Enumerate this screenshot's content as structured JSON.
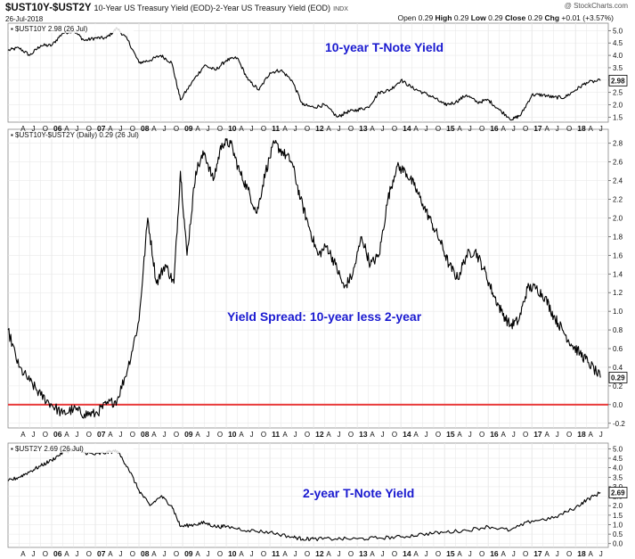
{
  "header": {
    "symbol": "$UST10Y-$UST2Y",
    "description": "10-Year US Treasury Yield (EOD)-2-Year US Treasury Yield (EOD)",
    "exchange": "INDX",
    "date": "26-Jul-2018",
    "watermark": "@ StockCharts.com",
    "quote_open_label": "Open",
    "quote_open": "0.29",
    "quote_high_label": "High",
    "quote_high": "0.29",
    "quote_low_label": "Low",
    "quote_low": "0.29",
    "quote_close_label": "Close",
    "quote_close": "0.29",
    "quote_chg_label": "Chg",
    "quote_chg": "+0.01 (+3.57%)"
  },
  "colors": {
    "line": "#000000",
    "zero_line": "#e83a3a",
    "title": "#1a1ad0",
    "grid": "#e6e6e6"
  },
  "chart_data": [
    {
      "type": "line",
      "label": "$UST10Y 2.98 (26 Jul)",
      "title": "10-year T-Note Yield",
      "last_value": "2.98",
      "ylim": [
        1.3,
        5.3
      ],
      "yticks": [
        "1.5",
        "2.0",
        "2.5",
        "3.0",
        "3.5",
        "4.0",
        "4.5",
        "5.0"
      ],
      "x": [
        2005.0,
        2005.25,
        2005.5,
        2005.75,
        2006.0,
        2006.25,
        2006.5,
        2006.75,
        2007.0,
        2007.25,
        2007.5,
        2007.75,
        2008.0,
        2008.25,
        2008.5,
        2008.75,
        2008.95,
        2009.25,
        2009.5,
        2009.75,
        2010.0,
        2010.25,
        2010.5,
        2010.75,
        2011.0,
        2011.25,
        2011.5,
        2011.75,
        2012.0,
        2012.25,
        2012.55,
        2012.75,
        2013.0,
        2013.25,
        2013.5,
        2013.75,
        2014.0,
        2014.25,
        2014.5,
        2014.75,
        2015.0,
        2015.25,
        2015.5,
        2015.75,
        2016.0,
        2016.25,
        2016.55,
        2016.75,
        2017.0,
        2017.25,
        2017.5,
        2017.75,
        2018.0,
        2018.25,
        2018.57
      ],
      "y": [
        4.2,
        4.3,
        4.0,
        4.4,
        4.4,
        4.9,
        5.0,
        4.6,
        4.7,
        4.7,
        5.1,
        4.6,
        3.7,
        3.8,
        4.0,
        3.7,
        2.2,
        3.0,
        3.6,
        3.4,
        3.8,
        3.9,
        3.0,
        2.6,
        3.3,
        3.4,
        3.0,
        2.0,
        1.9,
        2.0,
        1.5,
        1.7,
        1.8,
        1.9,
        2.5,
        2.6,
        3.0,
        2.7,
        2.5,
        2.3,
        2.0,
        2.1,
        2.4,
        2.1,
        2.2,
        1.8,
        1.4,
        1.6,
        2.4,
        2.4,
        2.3,
        2.3,
        2.6,
        2.9,
        2.98
      ]
    },
    {
      "type": "line",
      "label": "$UST10Y-$UST2Y (Daily) 0.29 (26 Jul)",
      "title": "Yield Spread: 10-year less 2-year",
      "last_value": "0.29",
      "ylim": [
        -0.25,
        2.95
      ],
      "yticks": [
        "-0.2",
        "0.0",
        "0.2",
        "0.4",
        "0.6",
        "0.8",
        "1.0",
        "1.2",
        "1.4",
        "1.6",
        "1.8",
        "2.0",
        "2.2",
        "2.4",
        "2.6",
        "2.8"
      ],
      "reference_line": 0.0,
      "x": [
        2005.0,
        2005.25,
        2005.5,
        2005.75,
        2006.0,
        2006.25,
        2006.5,
        2006.75,
        2007.0,
        2007.25,
        2007.5,
        2007.75,
        2008.0,
        2008.2,
        2008.4,
        2008.6,
        2008.8,
        2008.95,
        2009.1,
        2009.3,
        2009.5,
        2009.7,
        2009.9,
        2010.1,
        2010.3,
        2010.5,
        2010.7,
        2010.9,
        2011.1,
        2011.3,
        2011.5,
        2011.7,
        2011.9,
        2012.1,
        2012.3,
        2012.5,
        2012.7,
        2012.9,
        2013.1,
        2013.3,
        2013.5,
        2013.7,
        2013.9,
        2014.1,
        2014.3,
        2014.5,
        2014.7,
        2014.9,
        2015.1,
        2015.3,
        2015.5,
        2015.7,
        2015.9,
        2016.1,
        2016.3,
        2016.5,
        2016.7,
        2016.9,
        2017.1,
        2017.3,
        2017.5,
        2017.7,
        2017.9,
        2018.1,
        2018.3,
        2018.57
      ],
      "y": [
        0.8,
        0.4,
        0.25,
        0.1,
        0.0,
        -0.1,
        -0.05,
        -0.1,
        -0.1,
        0.0,
        0.05,
        0.4,
        0.9,
        2.0,
        1.3,
        1.5,
        1.3,
        2.5,
        1.6,
        2.5,
        2.7,
        2.4,
        2.8,
        2.8,
        2.5,
        2.3,
        2.05,
        2.5,
        2.8,
        2.7,
        2.6,
        2.2,
        1.9,
        1.6,
        1.7,
        1.5,
        1.25,
        1.4,
        1.8,
        1.5,
        1.6,
        2.2,
        2.55,
        2.5,
        2.35,
        2.15,
        1.95,
        1.75,
        1.5,
        1.35,
        1.6,
        1.65,
        1.45,
        1.2,
        1.0,
        0.85,
        0.9,
        1.25,
        1.25,
        1.15,
        0.95,
        0.8,
        0.65,
        0.55,
        0.45,
        0.29
      ]
    },
    {
      "type": "line",
      "label": "$UST2Y 2.69 (26 Jul)",
      "title": "2-year T-Note Yield",
      "last_value": "2.69",
      "ylim": [
        -0.2,
        5.3
      ],
      "yticks": [
        "0.0",
        "0.5",
        "1.0",
        "1.5",
        "2.0",
        "2.5",
        "3.0",
        "3.5",
        "4.0",
        "4.5",
        "5.0"
      ],
      "x": [
        2005.0,
        2005.25,
        2005.5,
        2005.75,
        2006.0,
        2006.25,
        2006.5,
        2006.75,
        2007.0,
        2007.25,
        2007.5,
        2007.75,
        2008.0,
        2008.25,
        2008.5,
        2008.75,
        2008.95,
        2009.25,
        2009.5,
        2009.75,
        2010.0,
        2010.5,
        2011.0,
        2011.5,
        2011.75,
        2012.0,
        2012.5,
        2013.0,
        2013.5,
        2014.0,
        2014.5,
        2015.0,
        2015.5,
        2016.0,
        2016.5,
        2017.0,
        2017.5,
        2018.0,
        2018.25,
        2018.57
      ],
      "y": [
        3.3,
        3.5,
        3.8,
        4.1,
        4.4,
        4.8,
        5.0,
        4.8,
        4.7,
        4.8,
        4.9,
        4.0,
        2.8,
        2.0,
        2.5,
        2.0,
        0.9,
        1.0,
        1.1,
        0.9,
        0.9,
        0.7,
        0.6,
        0.35,
        0.25,
        0.25,
        0.25,
        0.25,
        0.3,
        0.35,
        0.5,
        0.6,
        0.7,
        0.9,
        0.7,
        1.2,
        1.35,
        1.9,
        2.3,
        2.69
      ]
    }
  ],
  "x_axis": {
    "xlim": [
      2005.0,
      2018.75
    ],
    "labels": [
      {
        "x": 2005.25,
        "text": "A"
      },
      {
        "x": 2005.5,
        "text": "J"
      },
      {
        "x": 2005.75,
        "text": "O"
      },
      {
        "x": 2006.0,
        "text": "06",
        "year": true
      },
      {
        "x": 2006.25,
        "text": "A"
      },
      {
        "x": 2006.5,
        "text": "J"
      },
      {
        "x": 2006.75,
        "text": "O"
      },
      {
        "x": 2007.0,
        "text": "07",
        "year": true
      },
      {
        "x": 2007.25,
        "text": "A"
      },
      {
        "x": 2007.5,
        "text": "J"
      },
      {
        "x": 2007.75,
        "text": "O"
      },
      {
        "x": 2008.0,
        "text": "08",
        "year": true
      },
      {
        "x": 2008.25,
        "text": "A"
      },
      {
        "x": 2008.5,
        "text": "J"
      },
      {
        "x": 2008.75,
        "text": "O"
      },
      {
        "x": 2009.0,
        "text": "09",
        "year": true
      },
      {
        "x": 2009.25,
        "text": "A"
      },
      {
        "x": 2009.5,
        "text": "J"
      },
      {
        "x": 2009.75,
        "text": "O"
      },
      {
        "x": 2010.0,
        "text": "10",
        "year": true
      },
      {
        "x": 2010.25,
        "text": "A"
      },
      {
        "x": 2010.5,
        "text": "J"
      },
      {
        "x": 2010.75,
        "text": "O"
      },
      {
        "x": 2011.0,
        "text": "11",
        "year": true
      },
      {
        "x": 2011.25,
        "text": "A"
      },
      {
        "x": 2011.5,
        "text": "J"
      },
      {
        "x": 2011.75,
        "text": "O"
      },
      {
        "x": 2012.0,
        "text": "12",
        "year": true
      },
      {
        "x": 2012.25,
        "text": "A"
      },
      {
        "x": 2012.5,
        "text": "J"
      },
      {
        "x": 2012.75,
        "text": "O"
      },
      {
        "x": 2013.0,
        "text": "13",
        "year": true
      },
      {
        "x": 2013.25,
        "text": "A"
      },
      {
        "x": 2013.5,
        "text": "J"
      },
      {
        "x": 2013.75,
        "text": "O"
      },
      {
        "x": 2014.0,
        "text": "14",
        "year": true
      },
      {
        "x": 2014.25,
        "text": "A"
      },
      {
        "x": 2014.5,
        "text": "J"
      },
      {
        "x": 2014.75,
        "text": "O"
      },
      {
        "x": 2015.0,
        "text": "15",
        "year": true
      },
      {
        "x": 2015.25,
        "text": "A"
      },
      {
        "x": 2015.5,
        "text": "J"
      },
      {
        "x": 2015.75,
        "text": "O"
      },
      {
        "x": 2016.0,
        "text": "16",
        "year": true
      },
      {
        "x": 2016.25,
        "text": "A"
      },
      {
        "x": 2016.5,
        "text": "J"
      },
      {
        "x": 2016.75,
        "text": "O"
      },
      {
        "x": 2017.0,
        "text": "17",
        "year": true
      },
      {
        "x": 2017.25,
        "text": "A"
      },
      {
        "x": 2017.5,
        "text": "J"
      },
      {
        "x": 2017.75,
        "text": "O"
      },
      {
        "x": 2018.0,
        "text": "18",
        "year": true
      },
      {
        "x": 2018.25,
        "text": "A"
      },
      {
        "x": 2018.5,
        "text": "J"
      }
    ]
  }
}
